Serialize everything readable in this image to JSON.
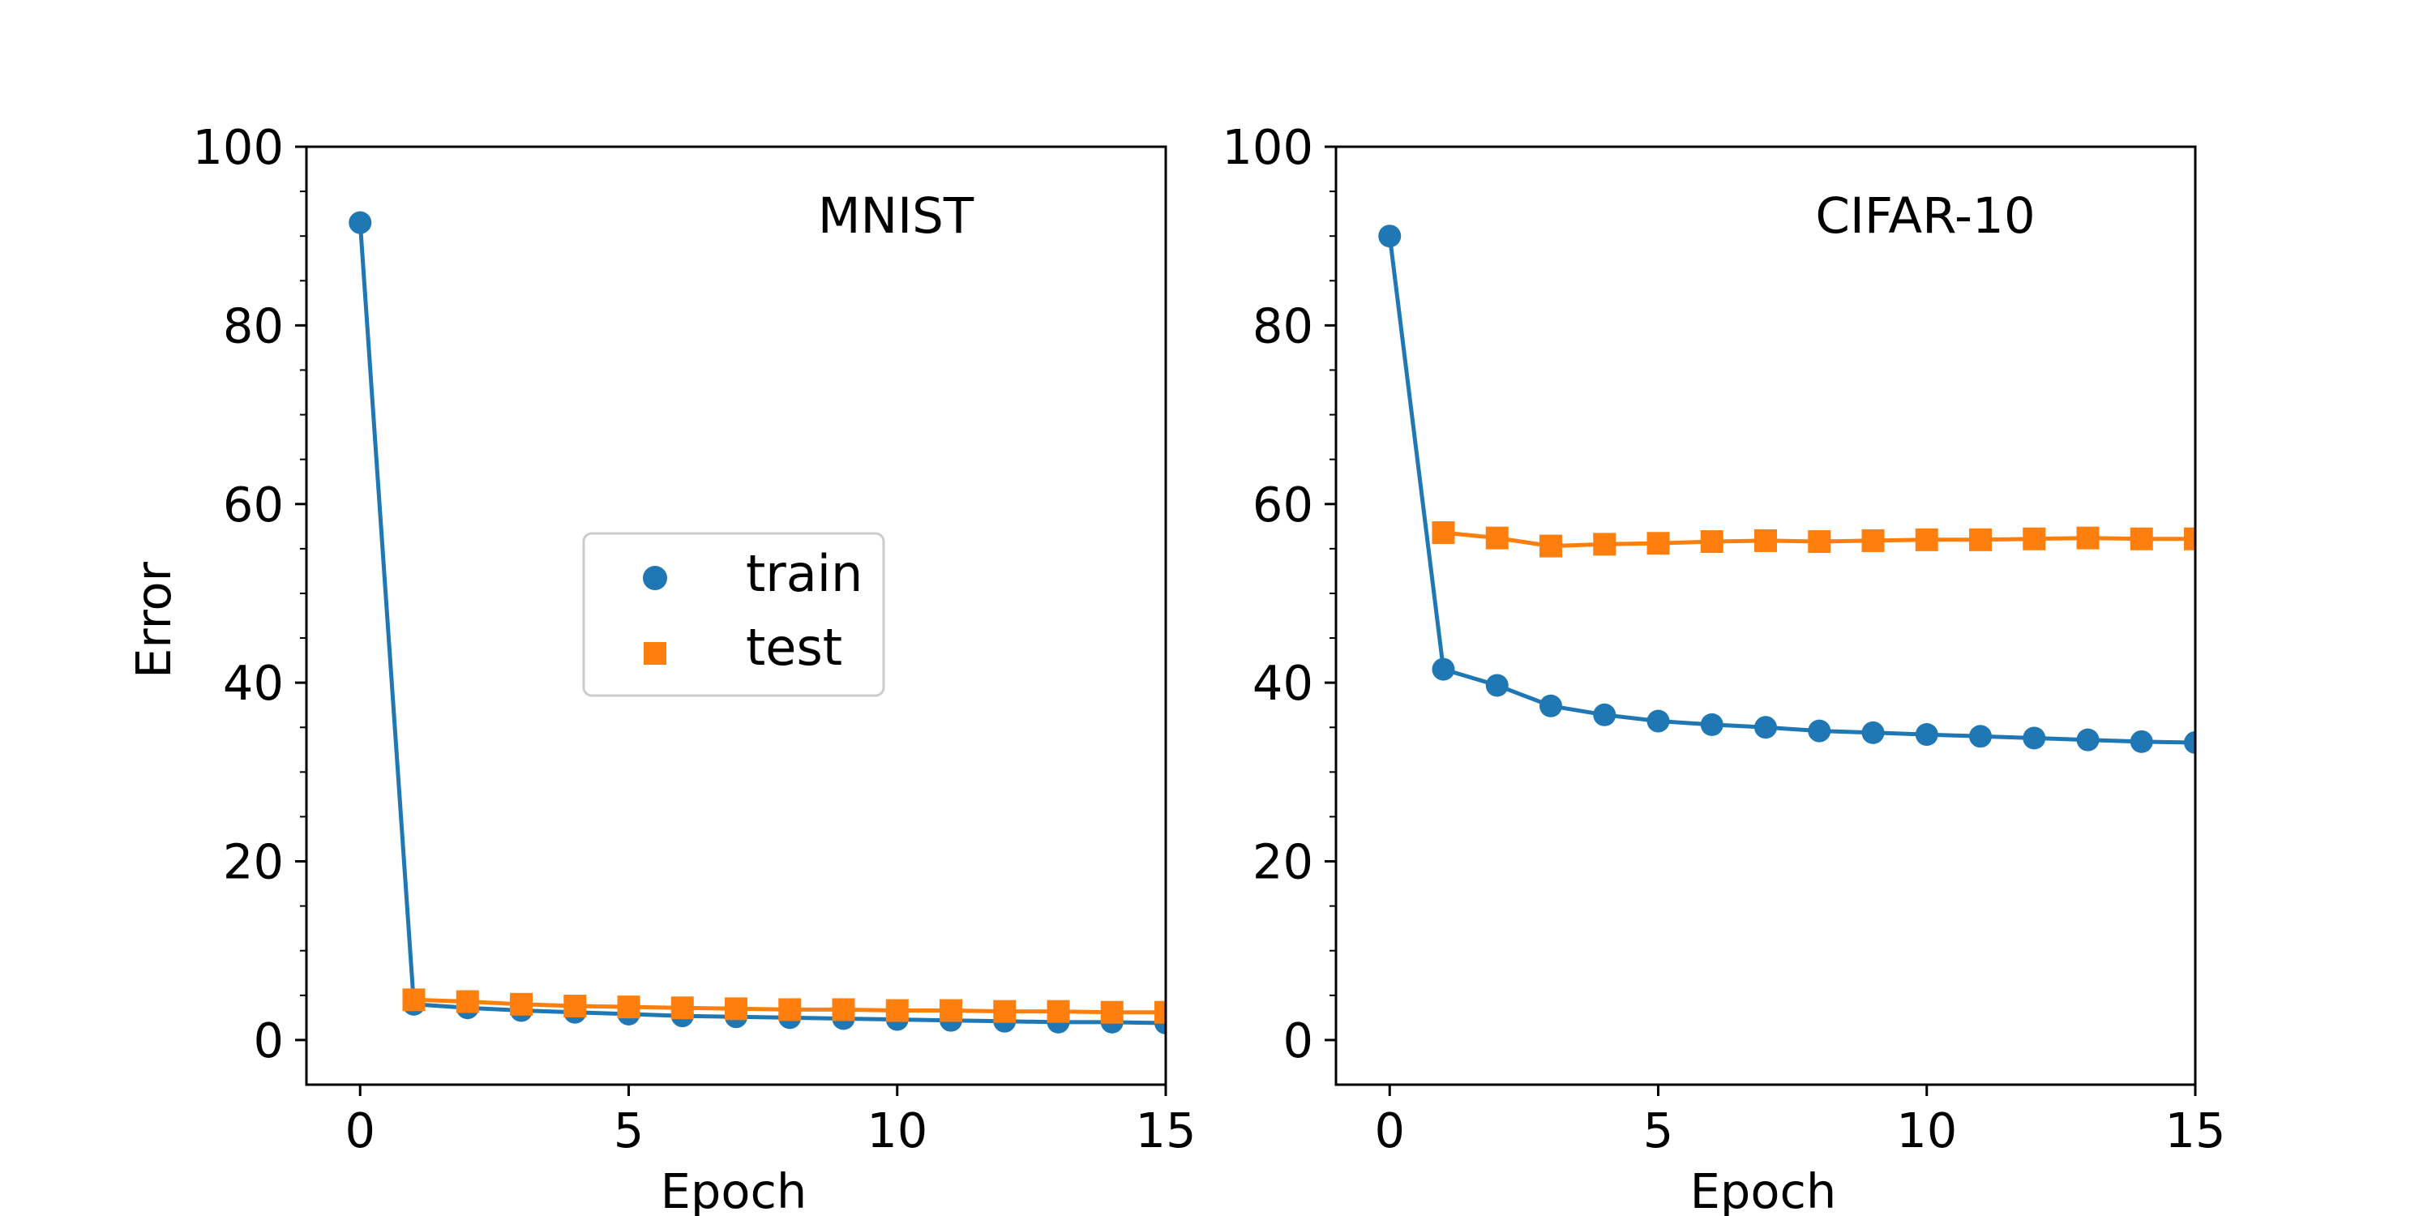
{
  "chart_data": [
    {
      "type": "line",
      "title": "MNIST",
      "xlabel": "Epoch",
      "ylabel": "Error",
      "xlim": [
        -1,
        15
      ],
      "ylim": [
        -5,
        100
      ],
      "xticks": [
        0,
        5,
        10,
        15
      ],
      "yticks": [
        0,
        20,
        40,
        60,
        80,
        100
      ],
      "legend_position": "center",
      "series": [
        {
          "name": "train",
          "marker": "circle",
          "color": "#1f77b4",
          "x": [
            0,
            1,
            2,
            3,
            4,
            5,
            6,
            7,
            8,
            9,
            10,
            11,
            12,
            13,
            14,
            15
          ],
          "values": [
            91.5,
            4.0,
            3.6,
            3.3,
            3.1,
            2.9,
            2.7,
            2.6,
            2.5,
            2.4,
            2.3,
            2.2,
            2.1,
            2.0,
            2.0,
            1.9
          ]
        },
        {
          "name": "test",
          "marker": "square",
          "color": "#ff7f0e",
          "x": [
            1,
            2,
            3,
            4,
            5,
            6,
            7,
            8,
            9,
            10,
            11,
            12,
            13,
            14,
            15
          ],
          "values": [
            4.5,
            4.3,
            4.0,
            3.8,
            3.7,
            3.6,
            3.5,
            3.4,
            3.4,
            3.3,
            3.3,
            3.2,
            3.2,
            3.1,
            3.1
          ]
        }
      ]
    },
    {
      "type": "line",
      "title": "CIFAR-10",
      "xlabel": "Epoch",
      "ylabel": "",
      "xlim": [
        -1,
        15
      ],
      "ylim": [
        -5,
        100
      ],
      "xticks": [
        0,
        5,
        10,
        15
      ],
      "yticks": [
        0,
        20,
        40,
        60,
        80,
        100
      ],
      "series": [
        {
          "name": "train",
          "marker": "circle",
          "color": "#1f77b4",
          "x": [
            0,
            1,
            2,
            3,
            4,
            5,
            6,
            7,
            8,
            9,
            10,
            11,
            12,
            13,
            14,
            15
          ],
          "values": [
            90.0,
            41.5,
            39.7,
            37.4,
            36.4,
            35.7,
            35.3,
            35.0,
            34.6,
            34.4,
            34.2,
            34.0,
            33.8,
            33.6,
            33.4,
            33.3
          ]
        },
        {
          "name": "test",
          "marker": "square",
          "color": "#ff7f0e",
          "x": [
            1,
            2,
            3,
            4,
            5,
            6,
            7,
            8,
            9,
            10,
            11,
            12,
            13,
            14,
            15
          ],
          "values": [
            56.8,
            56.2,
            55.3,
            55.5,
            55.6,
            55.8,
            55.9,
            55.8,
            55.9,
            56.0,
            56.0,
            56.1,
            56.2,
            56.1,
            56.1
          ]
        }
      ]
    }
  ]
}
